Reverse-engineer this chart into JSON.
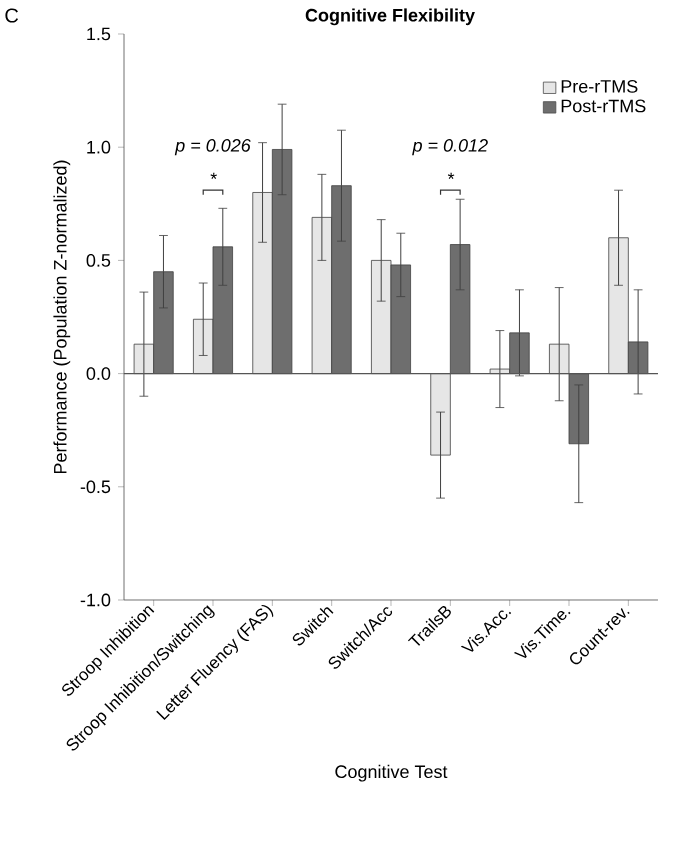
{
  "chart_data": {
    "type": "bar",
    "title": "Cognitive Flexibility",
    "xlabel": "Cognitive Test",
    "ylabel": "Performance (Population Z-normalized)",
    "categories": [
      "Stroop Inhibition",
      "Stroop Inhibition/Switching",
      "Letter Fluency (FAS)",
      "Switch",
      "Switch/Acc",
      "TrailsB",
      "Vis.Acc.",
      "Vis.Time.",
      "Count-rev."
    ],
    "series": [
      {
        "name": "Pre-rTMS",
        "color": "#e6e6e6",
        "values": [
          0.13,
          0.24,
          0.8,
          0.69,
          0.5,
          -0.36,
          0.02,
          0.13,
          0.6
        ],
        "errors": [
          0.23,
          0.16,
          0.22,
          0.19,
          0.18,
          0.19,
          0.17,
          0.25,
          0.21
        ]
      },
      {
        "name": "Post-rTMS",
        "color": "#6e6e6e",
        "values": [
          0.45,
          0.56,
          0.99,
          0.83,
          0.48,
          0.57,
          0.18,
          -0.31,
          0.14
        ],
        "errors": [
          0.16,
          0.17,
          0.2,
          0.245,
          0.14,
          0.2,
          0.19,
          0.26,
          0.23
        ]
      }
    ],
    "ylim": [
      -1.0,
      1.5
    ],
    "yticks": [
      {
        "value": -1.0,
        "label": "-1.0"
      },
      {
        "value": -0.5,
        "label": "-0.5"
      },
      {
        "value": 0.0,
        "label": "0.0"
      },
      {
        "value": 0.5,
        "label": "0.5"
      },
      {
        "value": 1.0,
        "label": "1.0"
      },
      {
        "value": 1.5,
        "label": "1.5"
      }
    ],
    "ref_lines": [
      {
        "axis": "y",
        "value": 0.0
      }
    ],
    "legend": "top right",
    "grid": false,
    "annotations": [
      "C",
      "p = 0.026",
      "*",
      "p = 0.012",
      "*"
    ]
  }
}
